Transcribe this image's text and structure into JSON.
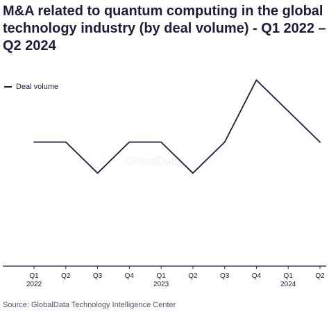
{
  "title": "M&A related to quantum computing in the global technology industry (by deal volume) - Q1 2022 – Q2 2024",
  "watermark": "GlobalData",
  "source": "Source: GlobalData Technology Intelligence Center",
  "colors": {
    "line": "#1e1b3a",
    "axis": "#1e1b3a"
  },
  "chart_data": {
    "type": "line",
    "title": "M&A related to quantum computing in the global technology industry (by deal volume) - Q1 2022 – Q2 2024",
    "xlabel": "",
    "ylabel": "",
    "categories": [
      "Q1 2022",
      "Q2",
      "Q3",
      "Q4",
      "Q1 2023",
      "Q2",
      "Q3",
      "Q4",
      "Q1 2024",
      "Q2"
    ],
    "tick_labels": [
      {
        "quarter": "Q1",
        "year": "2022"
      },
      {
        "quarter": "Q2",
        "year": ""
      },
      {
        "quarter": "Q3",
        "year": ""
      },
      {
        "quarter": "Q4",
        "year": ""
      },
      {
        "quarter": "Q1",
        "year": "2023"
      },
      {
        "quarter": "Q2",
        "year": ""
      },
      {
        "quarter": "Q3",
        "year": ""
      },
      {
        "quarter": "Q4",
        "year": ""
      },
      {
        "quarter": "Q1",
        "year": "2024"
      },
      {
        "quarter": "Q2",
        "year": ""
      }
    ],
    "series": [
      {
        "name": "Deal volume",
        "values": [
          4,
          4,
          3,
          4,
          4,
          3,
          4,
          6,
          5,
          4
        ]
      }
    ],
    "ylim": [
      0,
      6.5
    ],
    "grid": false,
    "y_axis_visible": false,
    "legend_position": "top-left"
  }
}
